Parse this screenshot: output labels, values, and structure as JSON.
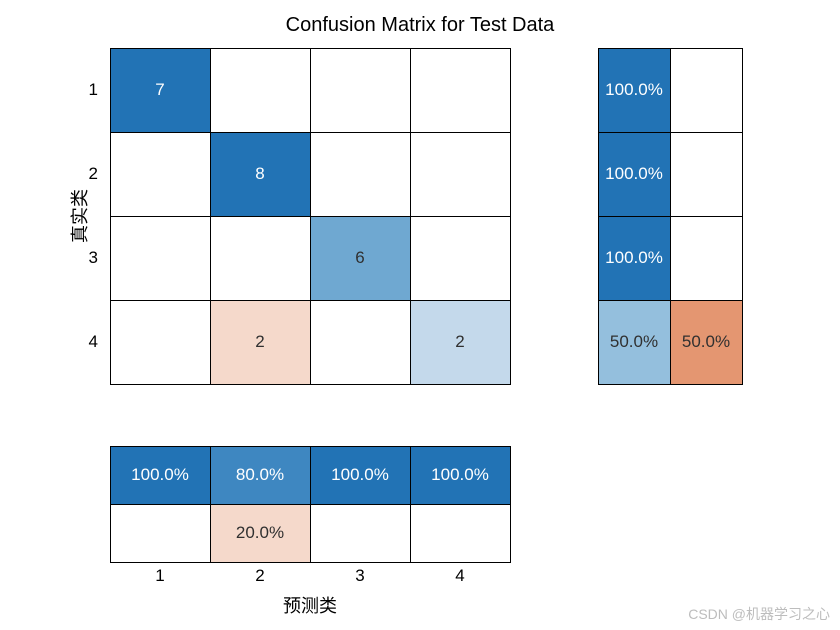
{
  "title": "Confusion Matrix for Test Data",
  "y_label": "真实类",
  "x_label": "预测类",
  "class_labels": [
    "1",
    "2",
    "3",
    "4"
  ],
  "title_fontsize": 20,
  "label_fontsize": 18,
  "tick_fontsize": 17,
  "cell_fontsize": 17,
  "background_color": "#ffffff",
  "border_color": "#000000",
  "text_dark": "#303030",
  "text_light": "#ffffff",
  "colors": {
    "blue_100": "#2273b5",
    "blue_80": "#3e87c1",
    "blue_60": "#6fa8d1",
    "blue_50": "#94bfdd",
    "blue_25": "#c4d9eb",
    "orange_50": "#e49671",
    "orange_20": "#f5d9cb",
    "empty": "#ffffff"
  },
  "main_matrix": {
    "type": "heatmap",
    "rows": 4,
    "cols": 4,
    "cells": [
      [
        {
          "v": "7",
          "bg": "blue_100",
          "fg": "text_light"
        },
        {
          "v": "",
          "bg": "empty",
          "fg": "text_dark"
        },
        {
          "v": "",
          "bg": "empty",
          "fg": "text_dark"
        },
        {
          "v": "",
          "bg": "empty",
          "fg": "text_dark"
        }
      ],
      [
        {
          "v": "",
          "bg": "empty",
          "fg": "text_dark"
        },
        {
          "v": "8",
          "bg": "blue_100",
          "fg": "text_light"
        },
        {
          "v": "",
          "bg": "empty",
          "fg": "text_dark"
        },
        {
          "v": "",
          "bg": "empty",
          "fg": "text_dark"
        }
      ],
      [
        {
          "v": "",
          "bg": "empty",
          "fg": "text_dark"
        },
        {
          "v": "",
          "bg": "empty",
          "fg": "text_dark"
        },
        {
          "v": "6",
          "bg": "blue_60",
          "fg": "text_dark"
        },
        {
          "v": "",
          "bg": "empty",
          "fg": "text_dark"
        }
      ],
      [
        {
          "v": "",
          "bg": "empty",
          "fg": "text_dark"
        },
        {
          "v": "2",
          "bg": "orange_20",
          "fg": "text_dark"
        },
        {
          "v": "",
          "bg": "empty",
          "fg": "text_dark"
        },
        {
          "v": "2",
          "bg": "blue_25",
          "fg": "text_dark"
        }
      ]
    ]
  },
  "row_summary": {
    "type": "heatmap",
    "rows": 4,
    "cols": 2,
    "cells": [
      [
        {
          "v": "100.0%",
          "bg": "blue_100",
          "fg": "text_light"
        },
        {
          "v": "",
          "bg": "empty",
          "fg": "text_dark"
        }
      ],
      [
        {
          "v": "100.0%",
          "bg": "blue_100",
          "fg": "text_light"
        },
        {
          "v": "",
          "bg": "empty",
          "fg": "text_dark"
        }
      ],
      [
        {
          "v": "100.0%",
          "bg": "blue_100",
          "fg": "text_light"
        },
        {
          "v": "",
          "bg": "empty",
          "fg": "text_dark"
        }
      ],
      [
        {
          "v": "50.0%",
          "bg": "blue_50",
          "fg": "text_dark"
        },
        {
          "v": "50.0%",
          "bg": "orange_50",
          "fg": "text_dark"
        }
      ]
    ]
  },
  "col_summary": {
    "type": "heatmap",
    "rows": 2,
    "cols": 4,
    "cells": [
      [
        {
          "v": "100.0%",
          "bg": "blue_100",
          "fg": "text_light"
        },
        {
          "v": "80.0%",
          "bg": "blue_80",
          "fg": "text_light"
        },
        {
          "v": "100.0%",
          "bg": "blue_100",
          "fg": "text_light"
        },
        {
          "v": "100.0%",
          "bg": "blue_100",
          "fg": "text_light"
        }
      ],
      [
        {
          "v": "",
          "bg": "empty",
          "fg": "text_dark"
        },
        {
          "v": "20.0%",
          "bg": "orange_20",
          "fg": "text_dark"
        },
        {
          "v": "",
          "bg": "empty",
          "fg": "text_dark"
        },
        {
          "v": "",
          "bg": "empty",
          "fg": "text_dark"
        }
      ]
    ]
  },
  "watermark": "CSDN @机器学习之心"
}
